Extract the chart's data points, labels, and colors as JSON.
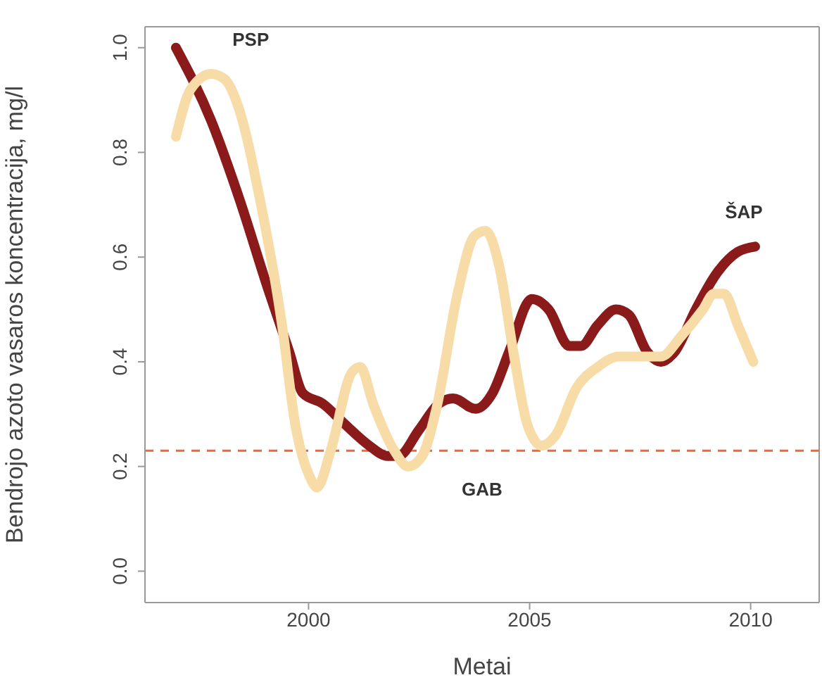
{
  "chart_data": {
    "type": "line",
    "xlabel": "Metai",
    "ylabel": "Bendrojo azoto vasaros koncentracija, mg/l",
    "xlim": [
      1996.3,
      2011.55
    ],
    "ylim": [
      -0.06,
      1.04
    ],
    "xticks": [
      2000,
      2005,
      2010
    ],
    "yticks": [
      {
        "value": 0,
        "label": "0.0"
      },
      0.2,
      0.4,
      0.6,
      0.8,
      {
        "value": 1,
        "label": "1.0"
      }
    ],
    "marker": "none",
    "line_style": "solid",
    "series": [
      {
        "name": "ŠAP",
        "color": "#8b1a1a",
        "x": [
          1997,
          1997.8,
          1998.44,
          1999.08,
          1999.56,
          1999.87,
          2000.32,
          2000.83,
          2001.37,
          2001.78,
          2002.03,
          2002.5,
          2002.95,
          2003.27,
          2003.78,
          2004.16,
          2004.54,
          2005.05,
          2005.43,
          2005.9,
          2006.16,
          2006.54,
          2006.95,
          2007.24,
          2007.65,
          2007.97,
          2008.29,
          2008.76,
          2009.24,
          2009.71,
          2010.1
        ],
        "values": [
          1,
          0.86,
          0.71,
          0.54,
          0.42,
          0.34,
          0.32,
          0.28,
          0.24,
          0.22,
          0.22,
          0.27,
          0.32,
          0.33,
          0.31,
          0.34,
          0.42,
          0.52,
          0.5,
          0.43,
          0.43,
          0.47,
          0.5,
          0.49,
          0.42,
          0.4,
          0.42,
          0.5,
          0.57,
          0.61,
          0.62
        ]
      },
      {
        "name": "PSP",
        "color": "#f7dca8",
        "x": [
          1997,
          1997.33,
          1997.8,
          1998.1,
          1998.4,
          1998.9,
          1999.4,
          1999.7,
          2000.03,
          2000.19,
          2000.5,
          2000.98,
          2001.17,
          2001.46,
          2001.94,
          2002.25,
          2002.57,
          2002.89,
          2003.37,
          2003.75,
          2004,
          2004.32,
          2004.63,
          2004.95,
          2005.27,
          2005.59,
          2006.06,
          2006.54,
          2007.02,
          2007.49,
          2007.97,
          2008.44,
          2008.92,
          2009.17,
          2009.4,
          2009.71,
          2010.06
        ],
        "values": [
          0.83,
          0.92,
          0.95,
          0.94,
          0.89,
          0.71,
          0.47,
          0.28,
          0.18,
          0.16,
          0.23,
          0.38,
          0.39,
          0.32,
          0.23,
          0.2,
          0.22,
          0.31,
          0.53,
          0.64,
          0.65,
          0.58,
          0.42,
          0.28,
          0.24,
          0.26,
          0.35,
          0.39,
          0.41,
          0.41,
          0.41,
          0.45,
          0.5,
          0.53,
          0.53,
          0.47,
          0.4
        ]
      }
    ],
    "ref_lines": [
      {
        "axis": "y",
        "value": 0.23,
        "label": "GAB",
        "color": "#f0643c",
        "line_style": "dashed"
      }
    ]
  }
}
